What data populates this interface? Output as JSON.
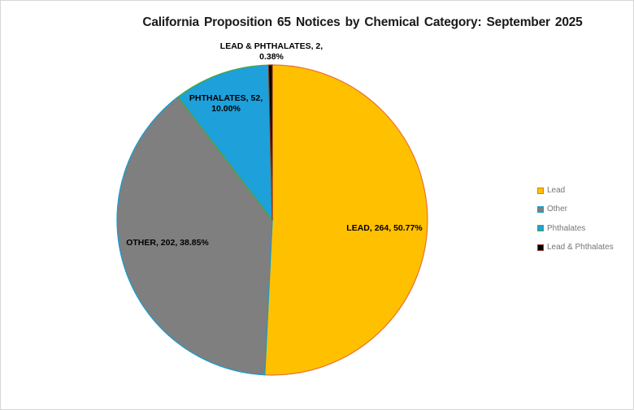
{
  "chart_data": {
    "type": "pie",
    "title": "California Proposition 65 Notices by Chemical Category: September 2025",
    "direction": "clockwise",
    "start_angle_deg": 0,
    "legend_position": "right",
    "background_color": "#ffffff",
    "title_color": "#1a1a1a",
    "label_color": "#000000",
    "legend_text_color": "#767676",
    "slices": [
      {
        "name": "Lead",
        "label": "LEAD, 264, 50.77%",
        "value": 264,
        "pct": 50.77,
        "fill": "#FFC000",
        "border": "#E97132"
      },
      {
        "name": "Other",
        "label": "OTHER, 202, 38.85%",
        "value": 202,
        "pct": 38.85,
        "fill": "#7F7F7F",
        "border": "#0F9ED5"
      },
      {
        "name": "Phthalates",
        "label": "PHTHALATES, 52, 10.00%",
        "value": 52,
        "pct": 10.0,
        "fill": "#1EA0DB",
        "border": "#4EA72E"
      },
      {
        "name": "Lead & Phthalates",
        "label": "LEAD & PHTHALATES, 2, 0.38%",
        "value": 2,
        "pct": 0.38,
        "fill": "#000000",
        "border": "#8C3A1D"
      }
    ]
  }
}
